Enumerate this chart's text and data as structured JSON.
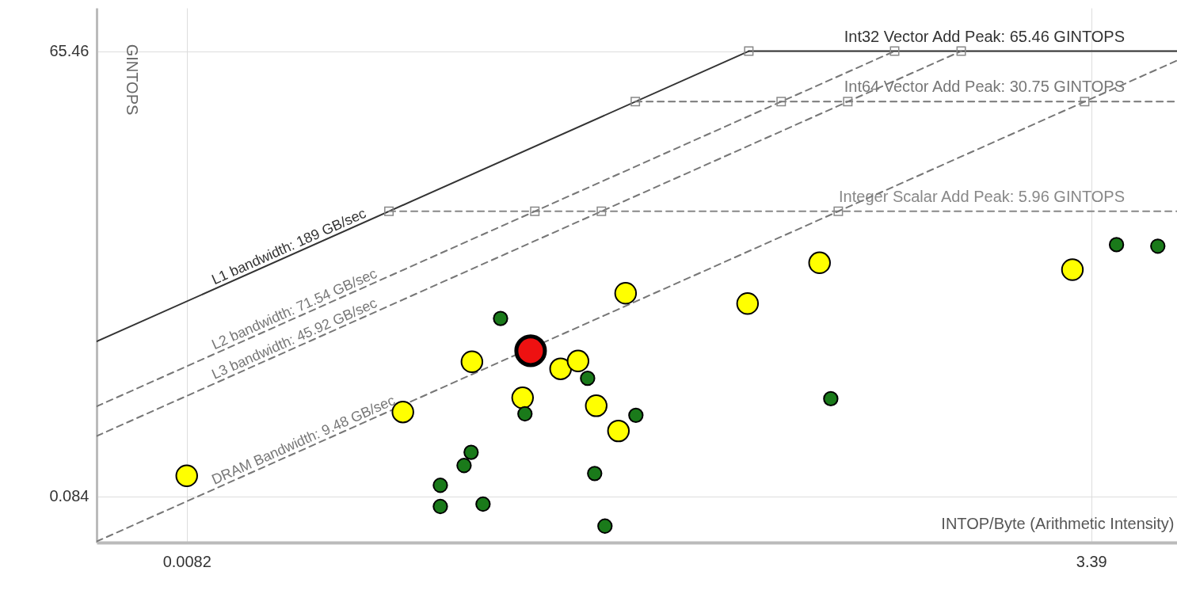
{
  "chart_data": {
    "type": "scatter",
    "xlabel": "INTOP/Byte (Arithmetic Intensity)",
    "ylabel": "GINTOPS",
    "xlim": [
      0.0045,
      6
    ],
    "ylim": [
      0.042,
      125
    ],
    "xticks": [
      0.0082,
      3.39
    ],
    "yticks": [
      0.084,
      65.46
    ],
    "log": "xy",
    "grid": true,
    "series": [
      {
        "type": "line",
        "name": "L1 bandwidth: 189 GB/sec",
        "color": "#333333",
        "line_style": "solid",
        "x": [
          0.0045,
          0.3464
        ],
        "values": [
          0.8505,
          65.46
        ]
      },
      {
        "type": "line",
        "name": "Int32 Vector Add Peak: 65.46 GINTOPS",
        "color": "#333333",
        "line_style": "solid",
        "x": [
          0.3464,
          6
        ],
        "values": [
          65.46,
          65.46
        ]
      },
      {
        "type": "line",
        "name": "Int64 Vector Add Peak: 30.75 GINTOPS",
        "color": "#777777",
        "line_style": "dashed",
        "x": [
          0.1627,
          6
        ],
        "values": [
          30.75,
          30.75
        ]
      },
      {
        "type": "line",
        "name": "Integer Scalar Add Peak: 5.96 GINTOPS",
        "color": "#888888",
        "line_style": "dashed",
        "x": [
          0.03153,
          6
        ],
        "values": [
          5.96,
          5.96
        ]
      },
      {
        "type": "line",
        "name": "L2 bandwidth: 71.54 GB/sec",
        "color": "#777777",
        "line_style": "dashed",
        "x": [
          0.0045,
          0.915
        ],
        "values": [
          0.3219,
          65.46
        ]
      },
      {
        "type": "line",
        "name": "L3 bandwidth: 45.92 GB/sec",
        "color": "#777777",
        "line_style": "dashed",
        "x": [
          0.0045,
          1.4255
        ],
        "values": [
          0.2066,
          65.46
        ]
      },
      {
        "type": "line",
        "name": "DRAM Bandwidth: 9.48 GB/sec",
        "color": "#777777",
        "line_style": "dashed",
        "x": [
          0.0045,
          6
        ],
        "values": [
          0.04266,
          56.88
        ]
      },
      {
        "marker": "square",
        "color": "#888888",
        "x": [
          0.3464,
          0.915,
          1.4255,
          0.1627,
          0.4298,
          0.6697,
          3.2437,
          0.03153,
          0.08331,
          0.1298,
          0.6287
        ],
        "values": [
          65.46,
          65.46,
          65.46,
          30.75,
          30.75,
          30.75,
          30.75,
          5.96,
          5.96,
          5.96,
          5.96
        ]
      },
      {
        "marker": "circle",
        "color": "#ffff00",
        "x": [
          0.0082,
          0.0346,
          0.0548,
          0.0768,
          0.0989,
          0.1111,
          0.1254,
          0.1454,
          0.1525,
          0.3436,
          0.555,
          2.99
        ],
        "values": [
          0.114,
          0.296,
          0.628,
          0.366,
          0.565,
          0.635,
          0.325,
          0.223,
          1.75,
          1.5,
          2.76,
          2.49
        ]
      },
      {
        "marker": "circle",
        "color": "#1a7a1a",
        "x": [
          0.0663,
          0.1184,
          0.078,
          0.1633,
          0.598,
          0.0545,
          0.052,
          0.0444,
          0.0444,
          0.059,
          0.1241,
          0.1329,
          4.01,
          5.28
        ],
        "values": [
          1.2,
          0.49,
          0.288,
          0.282,
          0.361,
          0.162,
          0.133,
          0.0989,
          0.072,
          0.0746,
          0.118,
          0.0537,
          3.62,
          3.54
        ]
      },
      {
        "marker": "circle",
        "color": "#ee1111",
        "x": [
          0.081
        ],
        "values": [
          0.74
        ]
      }
    ]
  }
}
